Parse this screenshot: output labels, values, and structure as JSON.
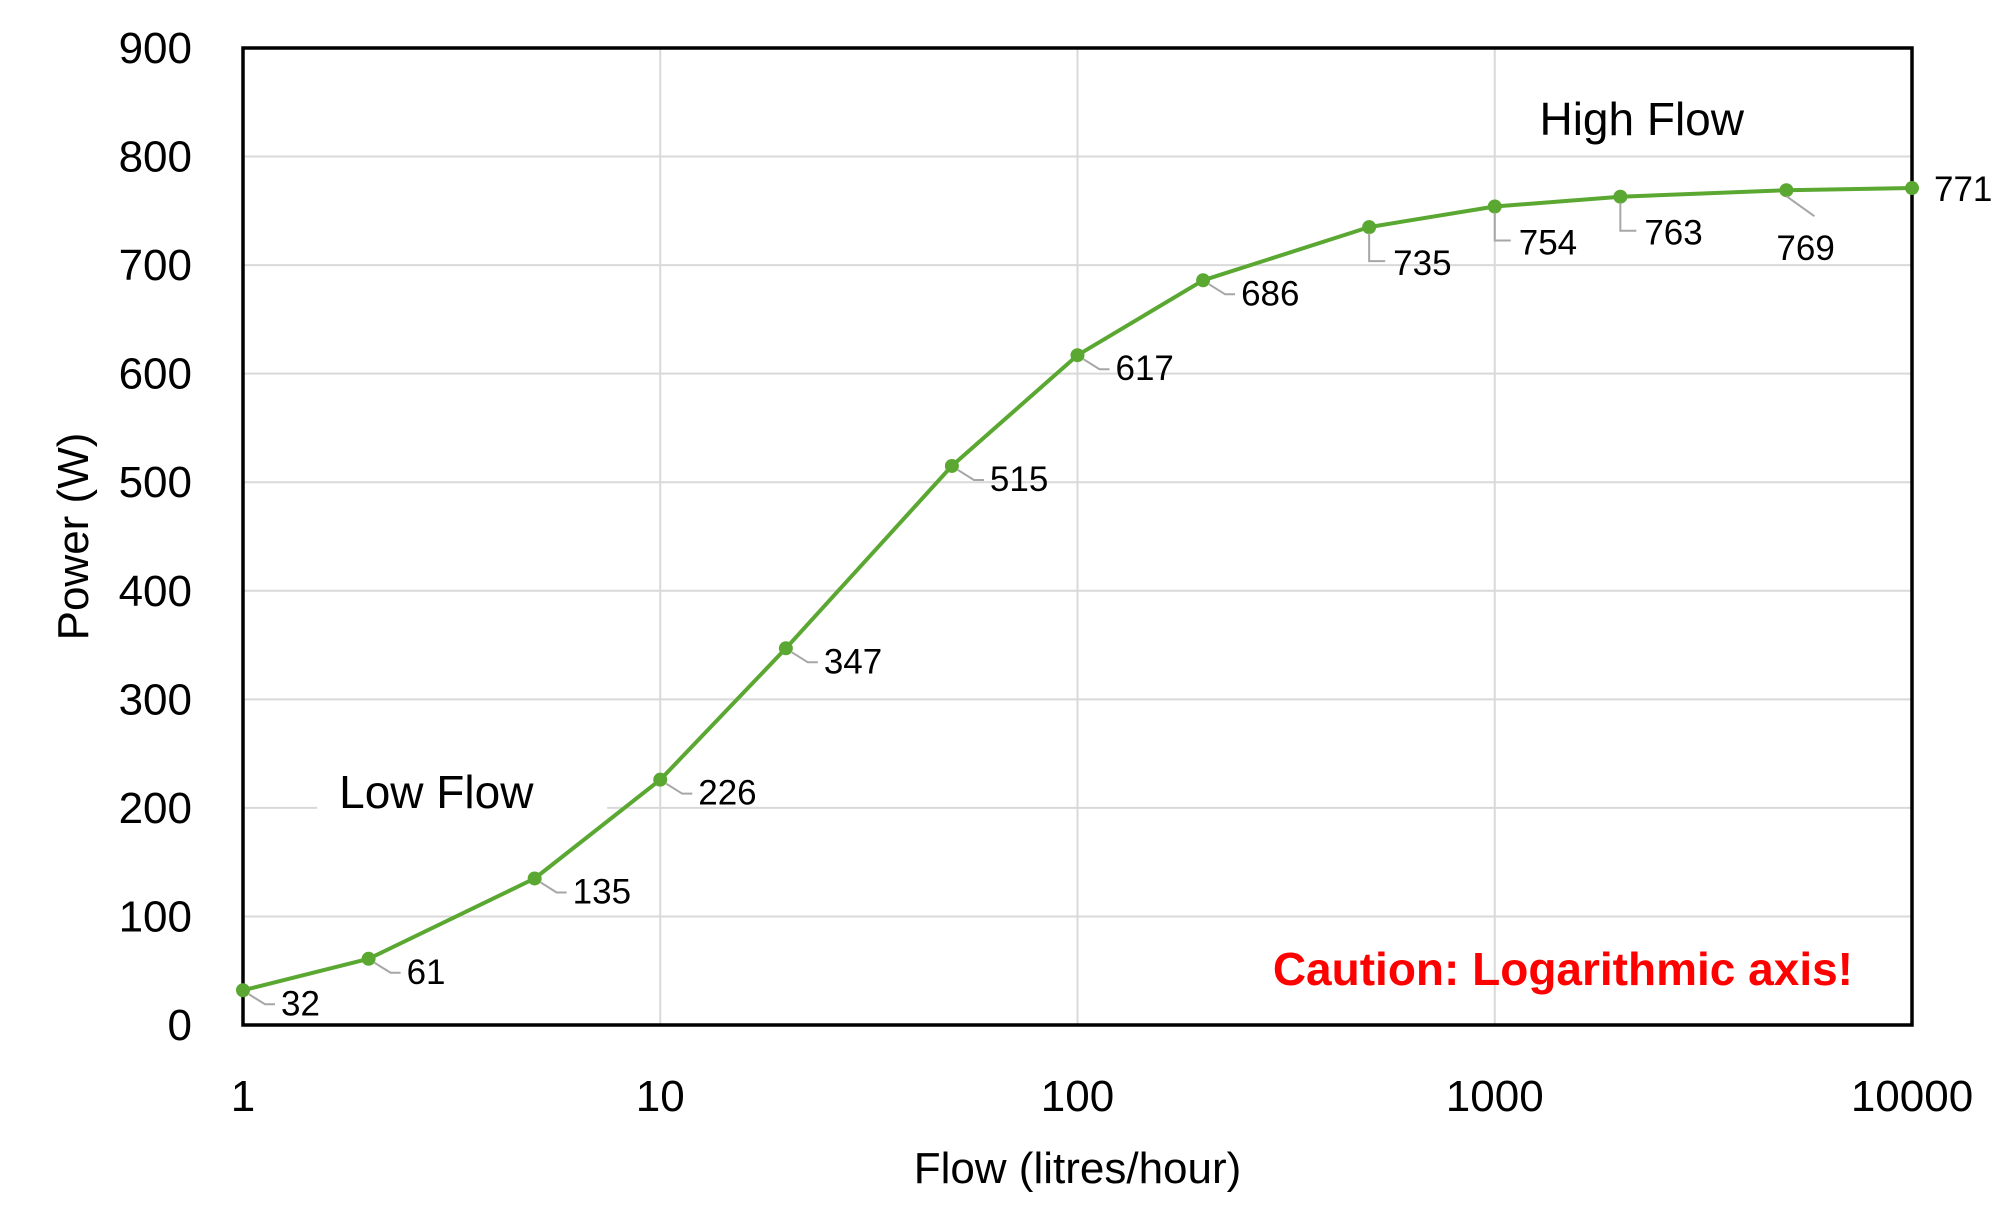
{
  "chart_data": {
    "type": "line",
    "xlabel": "Flow (litres/hour)",
    "ylabel": "Power (W)",
    "x_scale": "log",
    "xlim": [
      1,
      10000
    ],
    "ylim": [
      0,
      900
    ],
    "x_ticks": [
      1,
      10,
      100,
      1000,
      10000
    ],
    "x_tick_labels": [
      "1",
      "10",
      "100",
      "1000",
      "10000"
    ],
    "y_ticks": [
      0,
      100,
      200,
      300,
      400,
      500,
      600,
      700,
      800,
      900
    ],
    "y_tick_labels": [
      "0",
      "100",
      "200",
      "300",
      "400",
      "500",
      "600",
      "700",
      "800",
      "900"
    ],
    "grid": true,
    "series": [
      {
        "color": "#5aa832",
        "x": [
          1,
          2,
          5,
          10,
          20,
          50,
          100,
          200,
          500,
          1000,
          2000,
          5000,
          10000
        ],
        "y": [
          32,
          61,
          135,
          226,
          347,
          515,
          617,
          686,
          735,
          754,
          763,
          769,
          771
        ],
        "data_labels": [
          "32",
          "61",
          "135",
          "226",
          "347",
          "515",
          "617",
          "686",
          "735",
          "754",
          "763",
          "769",
          "771"
        ]
      }
    ],
    "annotations": [
      {
        "text": "Low Flow",
        "x": 1.7,
        "y": 200
      },
      {
        "text": "High Flow",
        "x": 1280,
        "y": 820
      },
      {
        "text": "Caution: Logarithmic axis!",
        "color": "#ff0000",
        "x": 900,
        "y": 50
      }
    ]
  }
}
